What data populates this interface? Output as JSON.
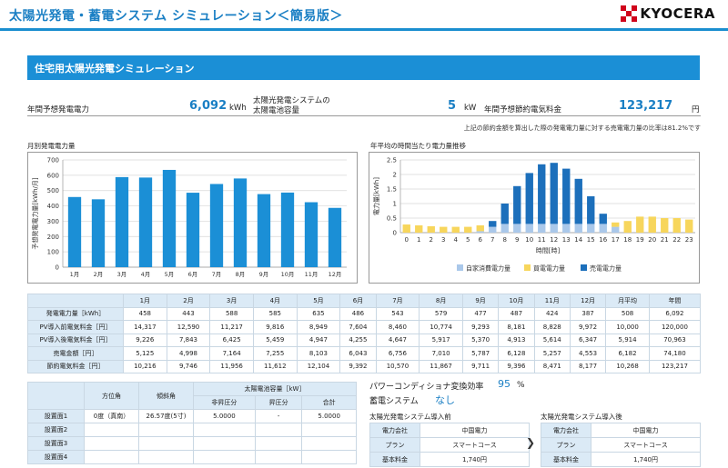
{
  "header": {
    "title": "太陽光発電・蓄電システム シミュレーション＜簡易版＞",
    "logo_text": "KYOCERA"
  },
  "section": {
    "title": "住宅用太陽光発電シミュレーション"
  },
  "summary": {
    "annual_gen_label": "年間予想発電電力",
    "annual_gen_value": "6,092",
    "annual_gen_unit": "kWh",
    "capacity_label_1": "太陽光発電システムの",
    "capacity_label_2": "太陽電池容量",
    "capacity_value": "5",
    "capacity_unit": "kW",
    "savings_label": "年間予想節約電気料金",
    "savings_value": "123,217",
    "savings_unit": "円",
    "note": "上記の節約金額を算出した際の発電電力量に対する売電電力量の比率は81.2%です"
  },
  "colors": {
    "bar_blue": "#1b8fd6",
    "self_use": "#aac8ea",
    "charge": "#f7d65c",
    "sell": "#1c6fbb"
  },
  "chart_data": [
    {
      "type": "bar",
      "title": "月別発電電力量",
      "ylabel": "予想発電電力量[kWh/月]",
      "categories": [
        "1月",
        "2月",
        "3月",
        "4月",
        "5月",
        "6月",
        "7月",
        "8月",
        "9月",
        "10月",
        "11月",
        "12月"
      ],
      "values": [
        458,
        443,
        588,
        585,
        635,
        486,
        543,
        579,
        477,
        487,
        424,
        387
      ],
      "ylim": [
        0,
        700
      ],
      "yticks": [
        "0",
        "100",
        "200",
        "300",
        "400",
        "500",
        "600",
        "700"
      ],
      "grid": true
    },
    {
      "type": "bar",
      "title": "年平均の時間当たり電力量推移",
      "xlabel": "時間[時]",
      "ylabel": "電力量[kWh]",
      "categories": [
        "0",
        "1",
        "2",
        "3",
        "4",
        "5",
        "6",
        "7",
        "8",
        "9",
        "10",
        "11",
        "12",
        "13",
        "14",
        "15",
        "16",
        "17",
        "18",
        "19",
        "20",
        "21",
        "22",
        "23"
      ],
      "stacked": true,
      "series": [
        {
          "name": "自家消費電力量",
          "values": [
            0,
            0,
            0,
            0,
            0,
            0,
            0.05,
            0.2,
            0.3,
            0.3,
            0.3,
            0.3,
            0.3,
            0.3,
            0.3,
            0.3,
            0.3,
            0.2,
            0,
            0,
            0,
            0,
            0,
            0
          ]
        },
        {
          "name": "買電電力量",
          "values": [
            0.28,
            0.25,
            0.22,
            0.2,
            0.2,
            0.2,
            0.2,
            0,
            0,
            0,
            0,
            0,
            0,
            0,
            0,
            0,
            0,
            0.15,
            0.4,
            0.55,
            0.55,
            0.5,
            0.5,
            0.45
          ]
        },
        {
          "name": "売電電力量",
          "values": [
            0,
            0,
            0,
            0,
            0,
            0,
            0,
            0.2,
            0.7,
            1.3,
            1.75,
            2.05,
            2.1,
            1.9,
            1.55,
            0.95,
            0.35,
            0,
            0,
            0,
            0,
            0,
            0,
            0
          ]
        }
      ],
      "ylim": [
        0,
        2.5
      ],
      "yticks": [
        "0",
        "0.5",
        "1",
        "1.5",
        "2",
        "2.5"
      ],
      "legend": "bottom",
      "grid": true
    }
  ],
  "monthly_table": {
    "headers": [
      "",
      "1月",
      "2月",
      "3月",
      "4月",
      "5月",
      "6月",
      "7月",
      "8月",
      "9月",
      "10月",
      "11月",
      "12月",
      "月平均",
      "年間"
    ],
    "rows": [
      {
        "label": "発電電力量［kWh］",
        "values": [
          "458",
          "443",
          "588",
          "585",
          "635",
          "486",
          "543",
          "579",
          "477",
          "487",
          "424",
          "387",
          "508",
          "6,092"
        ]
      },
      {
        "label": "PV導入前電気料金［円］",
        "values": [
          "14,317",
          "12,590",
          "11,217",
          "9,816",
          "8,949",
          "7,604",
          "8,460",
          "10,774",
          "9,293",
          "8,181",
          "8,828",
          "9,972",
          "10,000",
          "120,000"
        ]
      },
      {
        "label": "PV導入後電気料金［円］",
        "values": [
          "9,226",
          "7,843",
          "6,425",
          "5,459",
          "4,947",
          "4,255",
          "4,647",
          "5,917",
          "5,370",
          "4,913",
          "5,614",
          "6,347",
          "5,914",
          "70,963"
        ]
      },
      {
        "label": "売電金額［円］",
        "values": [
          "5,125",
          "4,998",
          "7,164",
          "7,255",
          "8,103",
          "6,043",
          "6,756",
          "7,010",
          "5,787",
          "6,128",
          "5,257",
          "4,553",
          "6,182",
          "74,180"
        ]
      },
      {
        "label": "節約電気料金［円］",
        "values": [
          "10,216",
          "9,746",
          "11,956",
          "11,612",
          "12,104",
          "9,392",
          "10,570",
          "11,867",
          "9,711",
          "9,396",
          "8,471",
          "8,177",
          "10,268",
          "123,217"
        ]
      }
    ]
  },
  "panel_table": {
    "h_azimuth": "方位角",
    "h_tilt": "傾斜角",
    "h_capacity": "太陽電池容量［kW］",
    "h_noboost": "非昇圧分",
    "h_boost": "昇圧分",
    "h_total": "合計",
    "rows": [
      {
        "label": "設置面1",
        "azimuth": "0度（真南）",
        "tilt": "26.57度(5寸)",
        "noboost": "5.0000",
        "boost": "-",
        "total": "5.0000"
      },
      {
        "label": "設置面2",
        "azimuth": "",
        "tilt": "",
        "noboost": "",
        "boost": "",
        "total": ""
      },
      {
        "label": "設置面3",
        "azimuth": "",
        "tilt": "",
        "noboost": "",
        "boost": "",
        "total": ""
      },
      {
        "label": "設置面4",
        "azimuth": "",
        "tilt": "",
        "noboost": "",
        "boost": "",
        "total": ""
      }
    ]
  },
  "pcs": {
    "label": "パワーコンディショナ変換効率",
    "value": "95",
    "unit": "%",
    "storage_label": "蓄電システム",
    "storage_value": "なし"
  },
  "before": {
    "title": "太陽光発電システム導入前",
    "company_label": "電力会社",
    "company": "中国電力",
    "plan_label": "プラン",
    "plan": "スマートコース",
    "fee_label": "基本料金",
    "fee": "1,740円"
  },
  "after": {
    "title": "太陽光発電システム導入後",
    "company_label": "電力会社",
    "company": "中国電力",
    "plan_label": "プラン",
    "plan": "スマートコース",
    "fee_label": "基本料金",
    "fee": "1,740円"
  },
  "arrow_icon": "chevron-right-icon"
}
